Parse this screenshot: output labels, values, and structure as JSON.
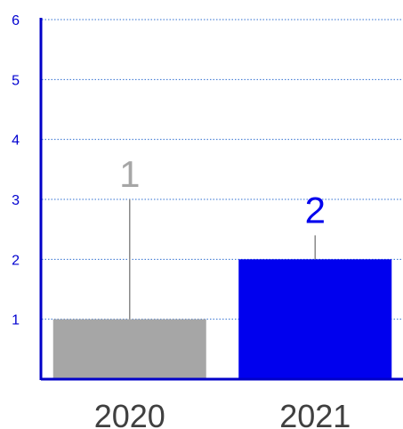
{
  "colors": {
    "axis": "#0000c8",
    "grid": "#2f6fd0",
    "tick_label": "#0000d0",
    "category_label": "#404040",
    "error_bar": "#8a8a8a"
  },
  "chart_data": {
    "type": "bar",
    "categories": [
      "2020",
      "2021"
    ],
    "values": [
      1,
      2
    ],
    "data_labels": [
      "1",
      "2"
    ],
    "error_upper": [
      3,
      2.4
    ],
    "bar_colors": [
      "#a6a6a6",
      "#0000ee"
    ],
    "data_label_colors": [
      "#a6a6a6",
      "#0000ee"
    ],
    "y_ticks": [
      "1",
      "2",
      "3",
      "4",
      "5",
      "6"
    ],
    "ylim": [
      0,
      6
    ],
    "grid": true,
    "legend": false
  }
}
